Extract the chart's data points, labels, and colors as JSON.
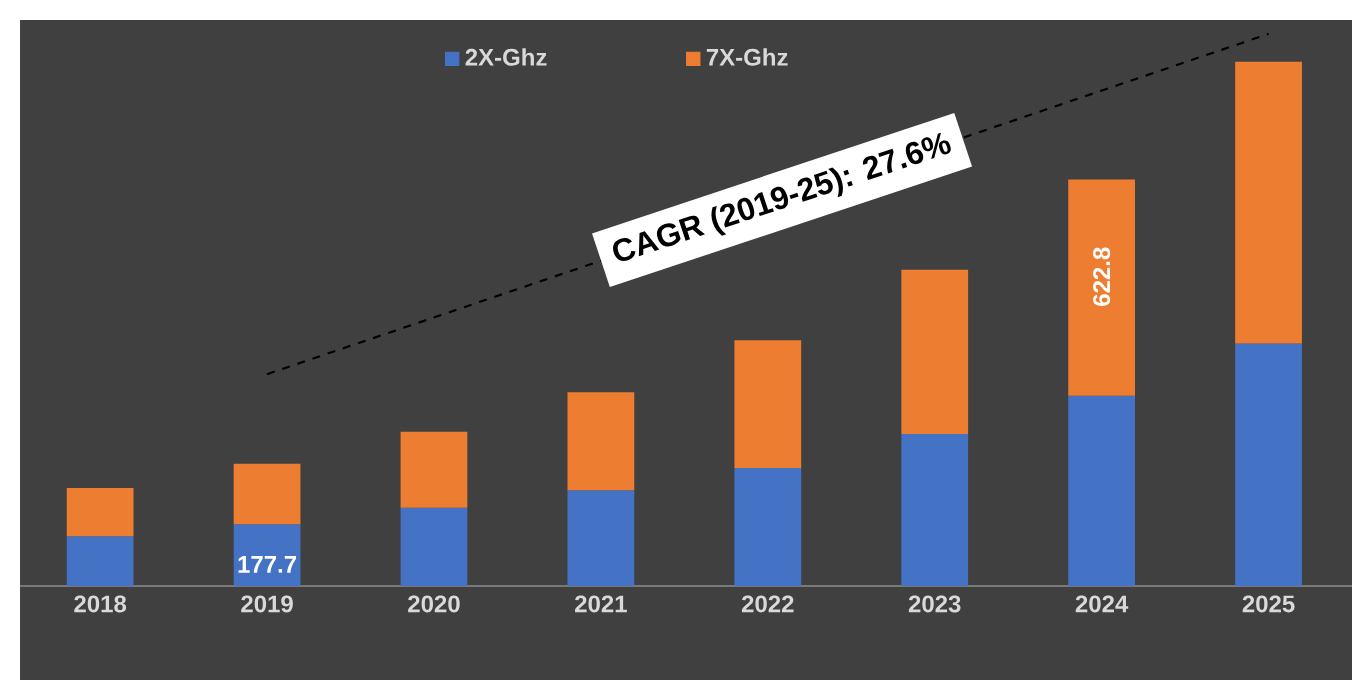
{
  "chart_data": {
    "type": "bar",
    "stacked": true,
    "legend": "top",
    "tick_labels": "x",
    "ylim": [
      0,
      1630
    ],
    "categories": [
      "2018",
      "2019",
      "2020",
      "2021",
      "2022",
      "2023",
      "2024",
      "2025"
    ],
    "series": [
      {
        "name": "2X-Ghz",
        "color": "#4472c4",
        "values": [
          143,
          177.7,
          225,
          276,
          340,
          438,
          548,
          698
        ],
        "value_labels": [
          null,
          "177.7",
          null,
          null,
          null,
          null,
          null,
          null
        ]
      },
      {
        "name": "7X-Ghz",
        "color": "#ed7d31",
        "values": [
          139,
          174,
          219,
          282,
          368,
          473,
          622.8,
          812
        ],
        "value_labels": [
          null,
          null,
          null,
          null,
          null,
          null,
          "622.8",
          null
        ]
      },
      {
        "type": "line",
        "color": "#000000",
        "line_style": "dashed",
        "values": [
          null,
          610,
          null,
          null,
          null,
          null,
          null,
          1590
        ]
      }
    ],
    "annotations": [
      "CAGR (2019-25): 27.6%"
    ]
  }
}
